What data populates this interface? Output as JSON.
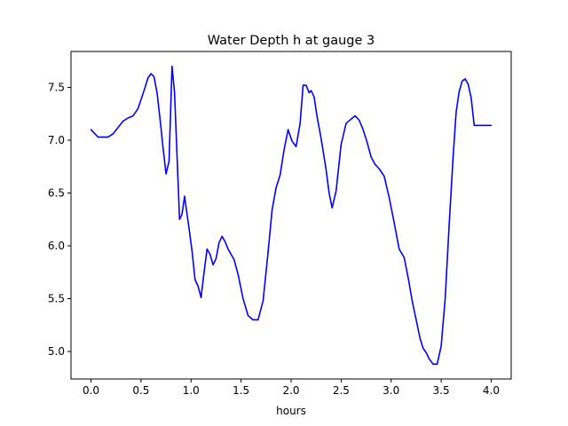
{
  "chart_data": {
    "type": "line",
    "title": "Water Depth h at gauge 3",
    "xlabel": "hours",
    "ylabel": "",
    "xlim": [
      -0.2,
      4.2
    ],
    "ylim": [
      4.74,
      7.84
    ],
    "xticks": [
      0.0,
      0.5,
      1.0,
      1.5,
      2.0,
      2.5,
      3.0,
      3.5,
      4.0
    ],
    "xtick_labels": [
      "0.0",
      "0.5",
      "1.0",
      "1.5",
      "2.0",
      "2.5",
      "3.0",
      "3.5",
      "4.0"
    ],
    "yticks": [
      5.0,
      5.5,
      6.0,
      6.5,
      7.0,
      7.5
    ],
    "ytick_labels": [
      "5.0",
      "5.5",
      "6.0",
      "6.5",
      "7.0",
      "7.5"
    ],
    "grid": false,
    "legend": "none",
    "series": [
      {
        "color": "#0000ff",
        "x": [
          0.0,
          0.03,
          0.07,
          0.12,
          0.17,
          0.22,
          0.27,
          0.32,
          0.37,
          0.42,
          0.47,
          0.52,
          0.57,
          0.6,
          0.63,
          0.66,
          0.69,
          0.72,
          0.75,
          0.78,
          0.81,
          0.835,
          0.86,
          0.885,
          0.91,
          0.935,
          0.96,
          0.985,
          1.01,
          1.04,
          1.07,
          1.1,
          1.13,
          1.16,
          1.19,
          1.22,
          1.25,
          1.28,
          1.31,
          1.34,
          1.37,
          1.4,
          1.43,
          1.47,
          1.52,
          1.57,
          1.62,
          1.67,
          1.72,
          1.77,
          1.81,
          1.85,
          1.89,
          1.93,
          1.97,
          2.01,
          2.05,
          2.09,
          2.12,
          2.15,
          2.18,
          2.2,
          2.23,
          2.26,
          2.29,
          2.32,
          2.35,
          2.38,
          2.41,
          2.45,
          2.5,
          2.55,
          2.6,
          2.64,
          2.68,
          2.72,
          2.76,
          2.8,
          2.84,
          2.88,
          2.93,
          2.98,
          3.03,
          3.08,
          3.13,
          3.17,
          3.21,
          3.25,
          3.29,
          3.32,
          3.35,
          3.38,
          3.42,
          3.46,
          3.5,
          3.54,
          3.58,
          3.62,
          3.65,
          3.68,
          3.71,
          3.74,
          3.77,
          3.8,
          3.83,
          3.86,
          3.89,
          3.92,
          3.95,
          3.98,
          4.0
        ],
        "y": [
          7.1,
          7.07,
          7.03,
          7.03,
          7.03,
          7.06,
          7.12,
          7.18,
          7.21,
          7.23,
          7.3,
          7.44,
          7.59,
          7.63,
          7.6,
          7.45,
          7.2,
          6.93,
          6.68,
          6.8,
          7.7,
          7.45,
          6.85,
          6.25,
          6.3,
          6.47,
          6.3,
          6.13,
          5.95,
          5.68,
          5.62,
          5.51,
          5.75,
          5.97,
          5.92,
          5.82,
          5.88,
          6.03,
          6.09,
          6.04,
          5.97,
          5.92,
          5.87,
          5.73,
          5.5,
          5.34,
          5.3,
          5.3,
          5.48,
          5.94,
          6.34,
          6.55,
          6.67,
          6.91,
          7.1,
          6.99,
          6.94,
          7.16,
          7.52,
          7.52,
          7.45,
          7.47,
          7.41,
          7.22,
          7.07,
          6.9,
          6.72,
          6.5,
          6.36,
          6.52,
          6.96,
          7.16,
          7.2,
          7.23,
          7.19,
          7.1,
          6.98,
          6.84,
          6.77,
          6.73,
          6.66,
          6.46,
          6.22,
          5.97,
          5.89,
          5.7,
          5.48,
          5.3,
          5.12,
          5.03,
          4.99,
          4.93,
          4.88,
          4.88,
          5.05,
          5.5,
          6.2,
          6.85,
          7.27,
          7.46,
          7.56,
          7.58,
          7.53,
          7.4,
          7.14,
          7.14,
          7.14,
          7.14,
          7.14,
          7.14,
          7.14
        ]
      }
    ]
  }
}
